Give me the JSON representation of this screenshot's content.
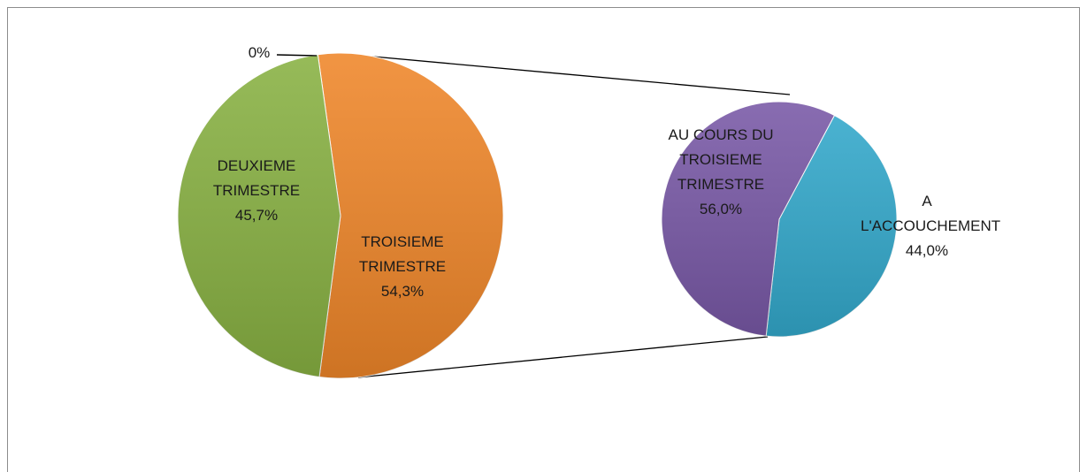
{
  "chart_data": {
    "type": "pie-of-pie",
    "categories": [
      "TROISIEME TRIMESTRE",
      "DEUXIEME TRIMESTRE",
      null
    ],
    "values": [
      54.3,
      45.7,
      0
    ],
    "value_labels": [
      "54,3%",
      "45,7%",
      "0%"
    ],
    "colors": [
      "#ef8629",
      "#88b142",
      "#888888"
    ],
    "secondary": {
      "categories": [
        "A L'ACCOUCHEMENT",
        "AU COURS DU TROISIEME TRIMESTRE"
      ],
      "values": [
        44.0,
        56.0
      ],
      "value_labels": [
        "44,0%",
        "56,0%"
      ],
      "colors": [
        "#33a9cc",
        "#7858a6"
      ]
    }
  }
}
